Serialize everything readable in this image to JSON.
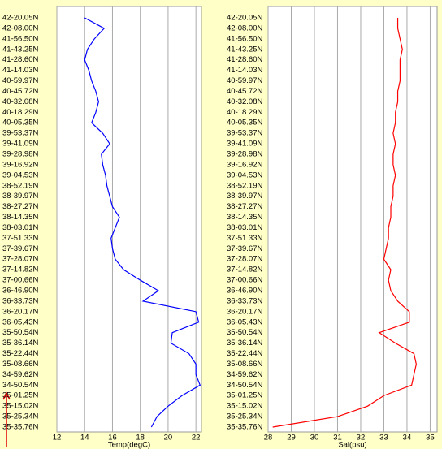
{
  "chart_data": [
    {
      "type": "line",
      "xlabel": "Temp(degC)",
      "color": "#0000ff",
      "grid": true,
      "categories": [
        "42-20.05N",
        "42-08.00N",
        "41-56.50N",
        "41-43.25N",
        "41-28.60N",
        "41-14.03N",
        "40-59.97N",
        "40-45.72N",
        "40-32.08N",
        "40-18.29N",
        "40-05.35N",
        "39-53.37N",
        "39-41.09N",
        "39-28.98N",
        "39-16.92N",
        "39-04.53N",
        "38-52.19N",
        "38-39.97N",
        "38-27.27N",
        "38-14.35N",
        "38-03.01N",
        "37-51.33N",
        "37-39.67N",
        "37-28.07N",
        "37-14.82N",
        "37-00.66N",
        "36-46.90N",
        "36-33.73N",
        "36-20.17N",
        "36-05.43N",
        "35-50.54N",
        "35-36.14N",
        "35-22.44N",
        "35-08.66N",
        "34-59.62N",
        "34-50.54N",
        "35-01.25N",
        "35-15.02N",
        "35-25.34N",
        "35-35.76N"
      ],
      "values": [
        14.0,
        15.4,
        14.7,
        14.2,
        14.0,
        14.3,
        14.5,
        14.8,
        15.0,
        14.8,
        14.5,
        15.3,
        15.8,
        15.2,
        15.3,
        15.5,
        15.6,
        15.8,
        16.0,
        16.5,
        16.2,
        15.9,
        16.0,
        16.2,
        16.8,
        18.0,
        19.3,
        18.2,
        22.0,
        22.2,
        20.3,
        20.2,
        21.5,
        22.0,
        22.0,
        22.3,
        21.0,
        20.0,
        19.2,
        18.8
      ],
      "xlim": [
        12,
        22.4
      ],
      "xticks": [
        12,
        14,
        16,
        18,
        20,
        22
      ]
    },
    {
      "type": "line",
      "xlabel": "Sal(psu)",
      "color": "#ff0000",
      "grid": true,
      "categories": [
        "42-20.05N",
        "42-08.00N",
        "41-56.50N",
        "41-43.25N",
        "41-28.60N",
        "41-14.03N",
        "40-59.97N",
        "40-45.72N",
        "40-32.08N",
        "40-18.29N",
        "40-05.35N",
        "39-53.37N",
        "39-41.09N",
        "39-28.98N",
        "39-16.92N",
        "39-04.53N",
        "38-52.19N",
        "38-39.97N",
        "38-27.27N",
        "38-14.35N",
        "38-03.01N",
        "37-51.33N",
        "37-39.67N",
        "37-28.07N",
        "37-14.82N",
        "37-00.66N",
        "36-46.90N",
        "36-33.73N",
        "36-20.17N",
        "36-05.43N",
        "35-50.54N",
        "35-36.14N",
        "35-22.44N",
        "35-08.66N",
        "34-59.62N",
        "34-50.54N",
        "35-01.25N",
        "35-15.02N",
        "35-25.34N",
        "35-35.76N"
      ],
      "values": [
        33.6,
        33.6,
        33.7,
        33.8,
        33.7,
        33.7,
        33.7,
        33.6,
        33.6,
        33.5,
        33.5,
        33.4,
        33.5,
        33.4,
        33.4,
        33.5,
        33.4,
        33.4,
        33.3,
        33.3,
        33.2,
        33.2,
        33.1,
        33.0,
        33.3,
        33.2,
        33.3,
        33.6,
        34.1,
        34.1,
        32.8,
        33.5,
        34.3,
        34.4,
        34.3,
        34.2,
        33.0,
        32.3,
        31.0,
        28.2
      ],
      "xlim": [
        28,
        35.3
      ],
      "xticks": [
        28,
        29,
        30,
        31,
        32,
        33,
        34,
        35
      ]
    }
  ]
}
